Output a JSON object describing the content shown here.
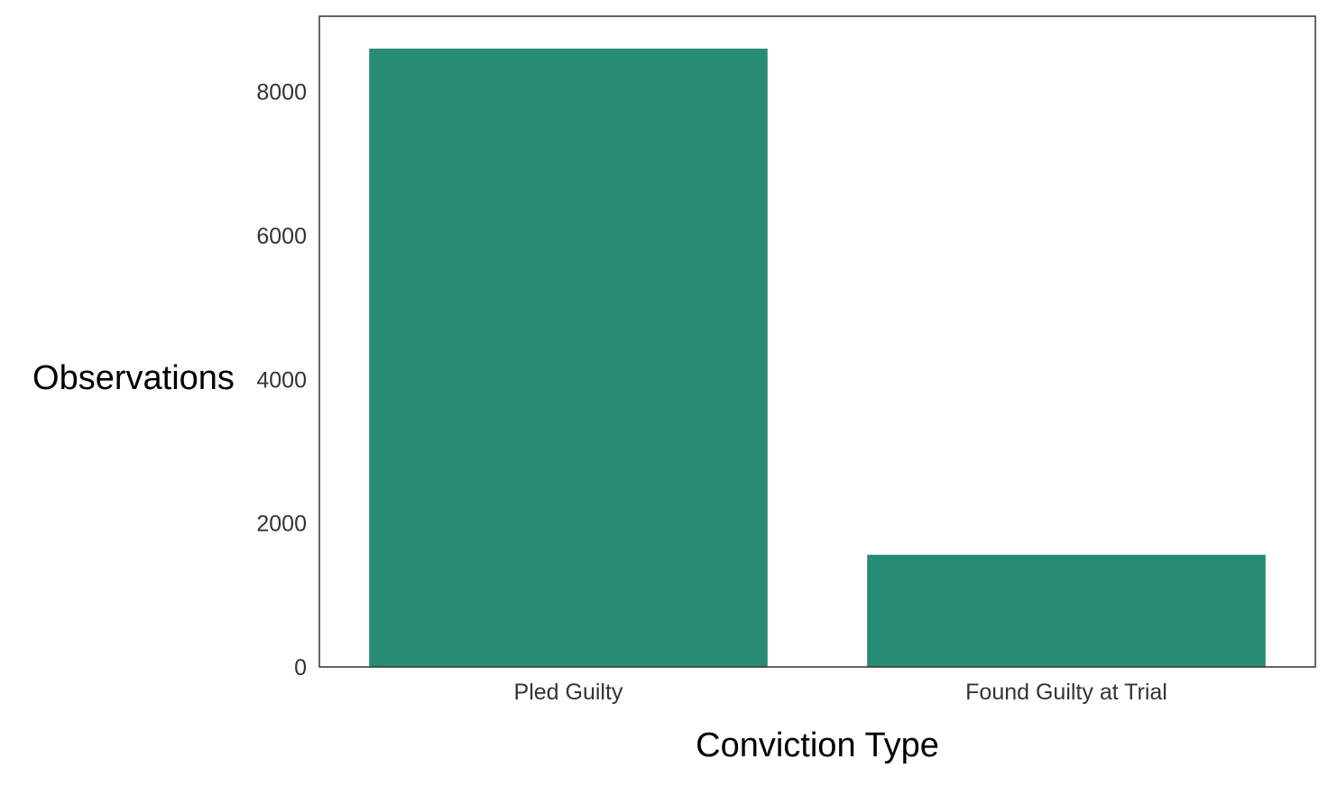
{
  "chart_data": {
    "type": "bar",
    "title": "",
    "xlabel": "Conviction Type",
    "ylabel": "Observations",
    "categories": [
      "Pled Guilty",
      "Found Guilty at Trial"
    ],
    "values": [
      8600,
      1560
    ],
    "ylim": [
      0,
      9050
    ],
    "yticks": [
      "0",
      "2000",
      "4000",
      "6000",
      "8000"
    ],
    "bar_color": "#288c74",
    "grid": false,
    "legend": "none"
  }
}
